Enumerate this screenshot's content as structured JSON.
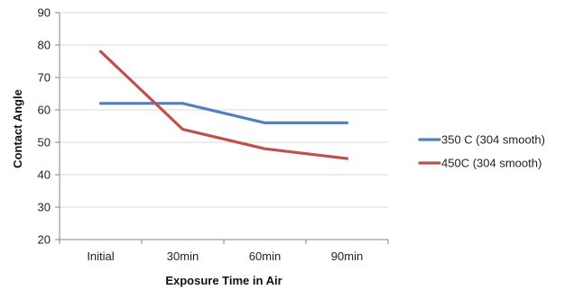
{
  "chart_data": {
    "type": "line",
    "categories": [
      "Initial",
      "30min",
      "60min",
      "90min"
    ],
    "series": [
      {
        "name": "350 C (304 smooth)",
        "values": [
          62,
          62,
          56,
          56
        ],
        "color": "#4F81BD"
      },
      {
        "name": "450C (304 smooth)",
        "values": [
          78,
          54,
          48,
          45
        ],
        "color": "#C0504D"
      }
    ],
    "xlabel": "Exposure Time in Air",
    "ylabel": "Contact Angle",
    "ylim": [
      20,
      90
    ],
    "yticks": [
      20,
      30,
      40,
      50,
      60,
      70,
      80,
      90
    ],
    "grid": true,
    "legend_position": "right"
  }
}
